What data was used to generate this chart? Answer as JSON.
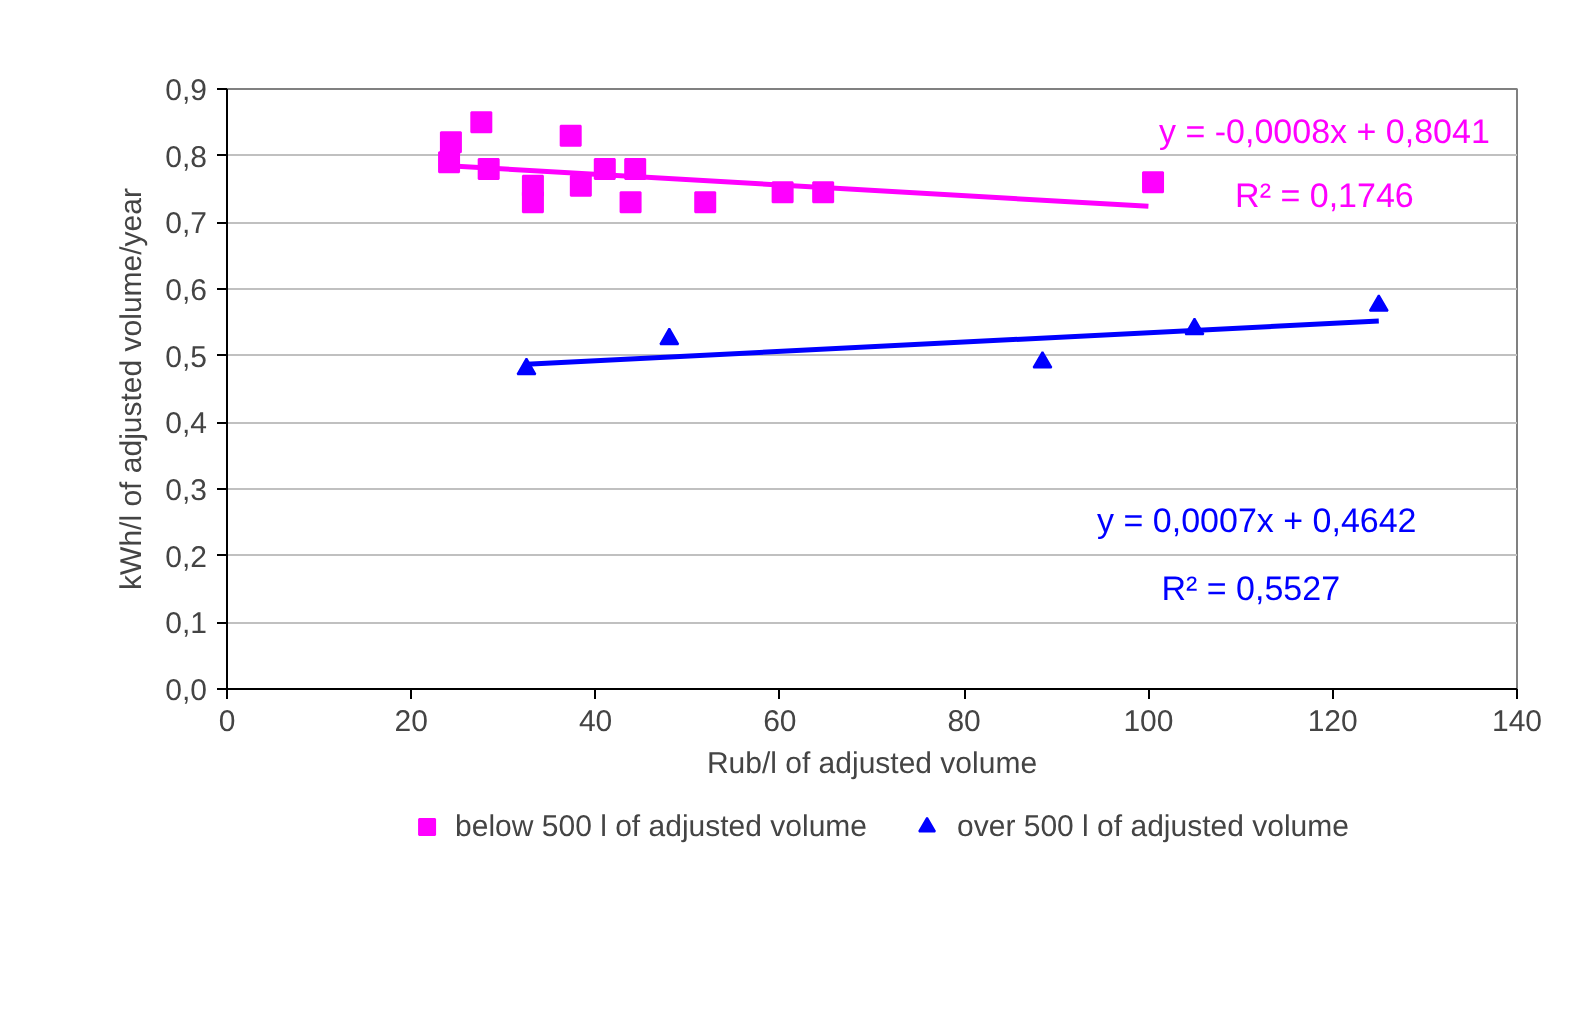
{
  "chart_data": {
    "type": "scatter",
    "xlabel": "Rub/l of adjusted volume",
    "ylabel": "kWh/l of adjusted volume/year",
    "xlim": [
      0,
      140
    ],
    "xticks": [
      0,
      20,
      40,
      60,
      80,
      100,
      120,
      140
    ],
    "ylim": [
      0,
      0.9
    ],
    "yticks": [
      {
        "value": 0,
        "label": "0,0"
      },
      {
        "value": 0.1,
        "label": "0,1"
      },
      {
        "value": 0.2,
        "label": "0,2"
      },
      {
        "value": 0.3,
        "label": "0,3"
      },
      {
        "value": 0.4,
        "label": "0,4"
      },
      {
        "value": 0.5,
        "label": "0,5"
      },
      {
        "value": 0.6,
        "label": "0,6"
      },
      {
        "value": 0.7,
        "label": "0,7"
      },
      {
        "value": 0.8,
        "label": "0,8"
      },
      {
        "value": 0.9,
        "label": "0,9"
      }
    ],
    "grid": "y",
    "legend": "bottom",
    "series": [
      {
        "name": "below 500 l of adjusted volume",
        "color": "#ff00ff",
        "marker": "square",
        "x": [
          24.1,
          24.3,
          27.6,
          28.4,
          33.2,
          33.2,
          37.3,
          38.4,
          41,
          44.3,
          43.8,
          51.9,
          60.3,
          64.7,
          100.5
        ],
        "values": [
          0.79,
          0.82,
          0.85,
          0.78,
          0.755,
          0.73,
          0.83,
          0.755,
          0.78,
          0.78,
          0.73,
          0.73,
          0.745,
          0.745,
          0.76
        ]
      },
      {
        "name": "over 500 l of adjusted volume",
        "color": "#0000ff",
        "marker": "triangle",
        "x": [
          32.5,
          48,
          88.5,
          105,
          125
        ],
        "values": [
          0.48,
          0.525,
          0.49,
          0.54,
          0.575
        ]
      },
      {
        "type": "line",
        "color": "#ff00ff",
        "x": [
          24,
          100
        ],
        "values": [
          0.785,
          0.724
        ]
      },
      {
        "type": "line",
        "color": "#0000ff",
        "x": [
          32.5,
          125
        ],
        "values": [
          0.487,
          0.552
        ]
      }
    ],
    "annotations": [
      "y = -0,0008x + 0,8041",
      "R² = 0,1746",
      "y = 0,0007x + 0,4642",
      "R² = 0,5527"
    ]
  }
}
